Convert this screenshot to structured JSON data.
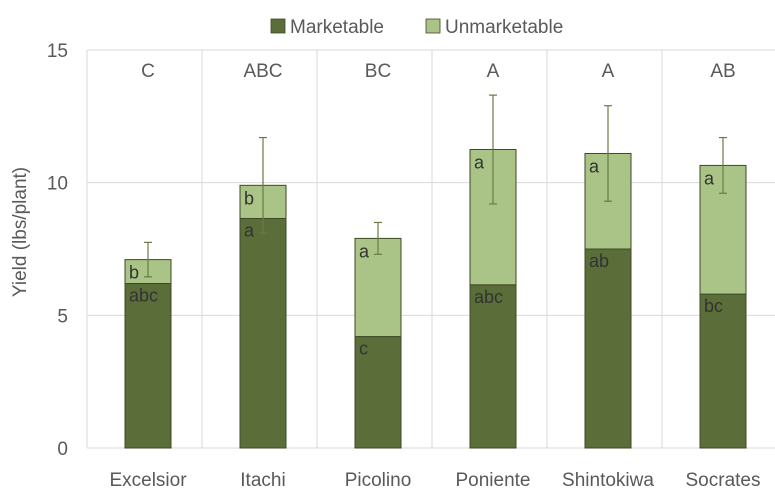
{
  "chart_data": {
    "type": "bar",
    "stacked": true,
    "ylabel": "Yield (lbs/plant)",
    "ylim": [
      0,
      15
    ],
    "yticks": [
      0,
      5,
      10,
      15
    ],
    "grid": true,
    "legend_position": "top",
    "categories": [
      "Excelsior",
      "Itachi",
      "Picolino",
      "Poniente",
      "Shintokiwa",
      "Socrates"
    ],
    "series": [
      {
        "name": "Marketable",
        "color": "#5b6e3a",
        "values": [
          6.2,
          8.65,
          4.2,
          6.15,
          7.5,
          5.8
        ],
        "letters": [
          "abc",
          "a",
          "c",
          "abc",
          "ab",
          "bc"
        ]
      },
      {
        "name": "Unmarketable",
        "color": "#a9c486",
        "values": [
          0.9,
          1.25,
          3.7,
          5.1,
          3.6,
          4.85
        ],
        "letters": [
          "b",
          "b",
          "a",
          "a",
          "a",
          "a"
        ]
      }
    ],
    "total_error": [
      0.65,
      1.8,
      0.6,
      2.05,
      1.8,
      1.05
    ],
    "total_letters": [
      "C",
      "ABC",
      "BC",
      "A",
      "A",
      "AB"
    ]
  }
}
